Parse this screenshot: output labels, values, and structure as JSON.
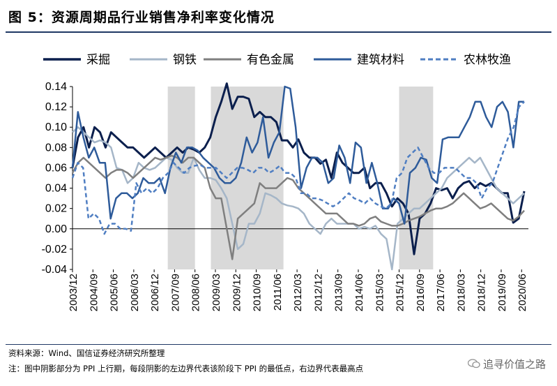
{
  "figure_title": "图 5：资源周期品行业销售净利率变化情况",
  "source": "资料来源：Wind、国信证券经济研究所整理",
  "note": "注：图中阴影部分为 PPI 上行期，每段阴影的左边界代表该阶段下 PPI 的最低点，右边界代表最高点",
  "watermark": "追寻价值之路",
  "chart_data": {
    "type": "line",
    "ylim": [
      -0.04,
      0.14
    ],
    "yticks": [
      "0.14",
      "0.12",
      "0.10",
      "0.08",
      "0.06",
      "0.04",
      "0.02",
      "0.00",
      "-0.02",
      "-0.04"
    ],
    "x_labels": [
      "2003/12",
      "2004/09",
      "2005/06",
      "2006/03",
      "2006/12",
      "2007/09",
      "2008/06",
      "2009/03",
      "2009/12",
      "2010/09",
      "2011/06",
      "2012/03",
      "2012/12",
      "2013/09",
      "2014/06",
      "2015/03",
      "2015/12",
      "2016/09",
      "2017/06",
      "2018/03",
      "2018/12",
      "2019/09",
      "2020/06"
    ],
    "shaded_periods": [
      [
        "2007/06",
        "2008/06"
      ],
      [
        "2009/01",
        "2011/09"
      ],
      [
        "2015/12",
        "2017/03"
      ]
    ],
    "series": [
      {
        "name": "采掘",
        "color": "#0b1f4d",
        "style": "solid",
        "values": [
          0.06,
          0.09,
          0.1,
          0.08,
          0.1,
          0.095,
          0.08,
          0.095,
          0.09,
          0.085,
          0.08,
          0.08,
          0.075,
          0.07,
          0.075,
          0.08,
          0.075,
          0.07,
          0.075,
          0.08,
          0.075,
          0.08,
          0.078,
          0.075,
          0.08,
          0.09,
          0.11,
          0.125,
          0.143,
          0.118,
          0.13,
          0.13,
          0.128,
          0.11,
          0.115,
          0.11,
          0.11,
          0.105,
          0.087,
          0.087,
          0.08,
          0.088,
          0.075,
          0.07,
          0.07,
          0.064,
          0.068,
          0.05,
          0.075,
          0.065,
          0.06,
          0.055,
          0.055,
          0.06,
          0.04,
          0.045,
          0.045,
          0.035,
          0.022,
          0.03,
          0.025,
          0.015,
          -0.025,
          0.01,
          0.015,
          0.025,
          0.04,
          0.038,
          0.04,
          0.03,
          0.04,
          0.045,
          0.047,
          0.04,
          0.045,
          0.042,
          0.045,
          0.04,
          0.035,
          0.035,
          0.006,
          0.01,
          0.037
        ]
      },
      {
        "name": "钢铁",
        "color": "#a5b6c8",
        "style": "solid",
        "values": [
          0.095,
          0.1,
          0.095,
          0.09,
          0.085,
          0.087,
          0.085,
          0.08,
          0.06,
          0.058,
          0.045,
          0.05,
          0.065,
          0.06,
          0.058,
          0.06,
          0.065,
          0.07,
          0.068,
          0.06,
          0.055,
          0.055,
          0.07,
          0.058,
          0.05,
          0.05,
          0.048,
          0.04,
          0.03,
          0.005,
          -0.02,
          -0.015,
          0.005,
          0.005,
          0.015,
          0.035,
          0.033,
          0.03,
          0.025,
          0.023,
          0.022,
          0.02,
          0.015,
          0.005,
          0.0,
          -0.005,
          0.005,
          0.01,
          0.005,
          0.005,
          0.005,
          0.005,
          0.0,
          0.002,
          0.0,
          0.003,
          -0.005,
          -0.01,
          -0.04,
          0.005,
          0.01,
          0.015,
          0.02,
          0.02,
          0.025,
          0.03,
          0.035,
          0.04,
          0.05,
          0.055,
          0.06,
          0.065,
          0.07,
          0.065,
          0.07,
          0.06,
          0.05,
          0.04,
          0.035,
          0.03,
          0.025,
          0.03,
          0.035
        ]
      },
      {
        "name": "有色金属",
        "color": "#7f7f7f",
        "style": "solid",
        "values": [
          0.055,
          0.065,
          0.07,
          0.065,
          0.06,
          0.055,
          0.05,
          0.055,
          0.058,
          0.058,
          0.055,
          0.05,
          0.055,
          0.06,
          0.065,
          0.07,
          0.068,
          0.07,
          0.072,
          0.07,
          0.065,
          0.07,
          0.07,
          0.065,
          0.06,
          0.04,
          0.03,
          0.03,
          0.0,
          -0.03,
          0.01,
          0.015,
          0.02,
          0.025,
          0.045,
          0.04,
          0.04,
          0.04,
          0.045,
          0.05,
          0.048,
          0.04,
          0.035,
          0.03,
          0.025,
          0.02,
          0.015,
          0.015,
          0.015,
          0.01,
          0.005,
          0.005,
          0.003,
          0.005,
          0.01,
          0.012,
          0.007,
          0.005,
          0.003,
          0.003,
          0.005,
          0.008,
          0.01,
          0.012,
          0.015,
          0.018,
          0.02,
          0.02,
          0.022,
          0.025,
          0.03,
          0.035,
          0.03,
          0.025,
          0.02,
          0.022,
          0.025,
          0.02,
          0.015,
          0.01,
          0.008,
          0.012,
          0.018
        ]
      },
      {
        "name": "建筑材料",
        "color": "#2e5b9a",
        "style": "solid",
        "values": [
          0.06,
          0.115,
          0.09,
          0.07,
          0.08,
          0.065,
          0.065,
          0.01,
          0.03,
          0.035,
          0.035,
          0.03,
          0.035,
          0.05,
          0.045,
          0.045,
          0.05,
          0.035,
          0.06,
          0.075,
          0.065,
          0.08,
          0.08,
          0.077,
          0.07,
          0.065,
          0.06,
          0.05,
          0.045,
          0.045,
          0.05,
          0.065,
          0.09,
          0.075,
          0.085,
          0.11,
          0.07,
          0.085,
          0.095,
          0.14,
          0.138,
          0.1,
          0.04,
          0.06,
          0.07,
          0.07,
          0.065,
          0.045,
          0.05,
          0.082,
          0.07,
          0.045,
          0.085,
          0.08,
          0.045,
          0.065,
          0.045,
          0.02,
          0.02,
          0.03,
          0.025,
          0.005,
          0.055,
          0.06,
          0.07,
          0.068,
          0.05,
          0.045,
          0.088,
          0.09,
          0.09,
          0.09,
          0.1,
          0.11,
          0.125,
          0.125,
          0.11,
          0.1,
          0.12,
          0.125,
          0.115,
          0.08,
          0.125,
          0.125
        ]
      },
      {
        "name": "农林牧渔",
        "color": "#4f7ec2",
        "style": "dashed",
        "values": [
          0.05,
          0.065,
          0.06,
          0.01,
          0.015,
          0.01,
          -0.005,
          0.005,
          0.005,
          0.0,
          0.0,
          -0.002,
          0.045,
          0.035,
          0.04,
          0.035,
          0.04,
          0.05,
          0.055,
          0.065,
          0.06,
          0.055,
          0.06,
          0.062,
          0.063,
          0.06,
          0.06,
          0.06,
          0.055,
          0.05,
          0.055,
          0.06,
          0.06,
          0.058,
          0.055,
          0.06,
          0.06,
          0.055,
          0.058,
          0.062,
          0.055,
          0.055,
          0.05,
          0.035,
          0.035,
          0.03,
          0.03,
          0.028,
          0.025,
          0.022,
          0.025,
          0.03,
          0.035,
          0.03,
          0.028,
          0.025,
          0.03,
          0.025,
          0.022,
          0.02,
          0.025,
          0.05,
          0.055,
          0.07,
          0.075,
          0.08,
          0.07,
          0.06,
          0.055,
          0.055,
          0.06,
          0.06,
          0.06,
          0.055,
          0.05,
          0.05,
          0.045,
          0.03,
          0.04,
          0.045,
          0.06,
          0.075,
          0.09,
          0.1,
          0.12,
          0.125
        ]
      }
    ]
  }
}
